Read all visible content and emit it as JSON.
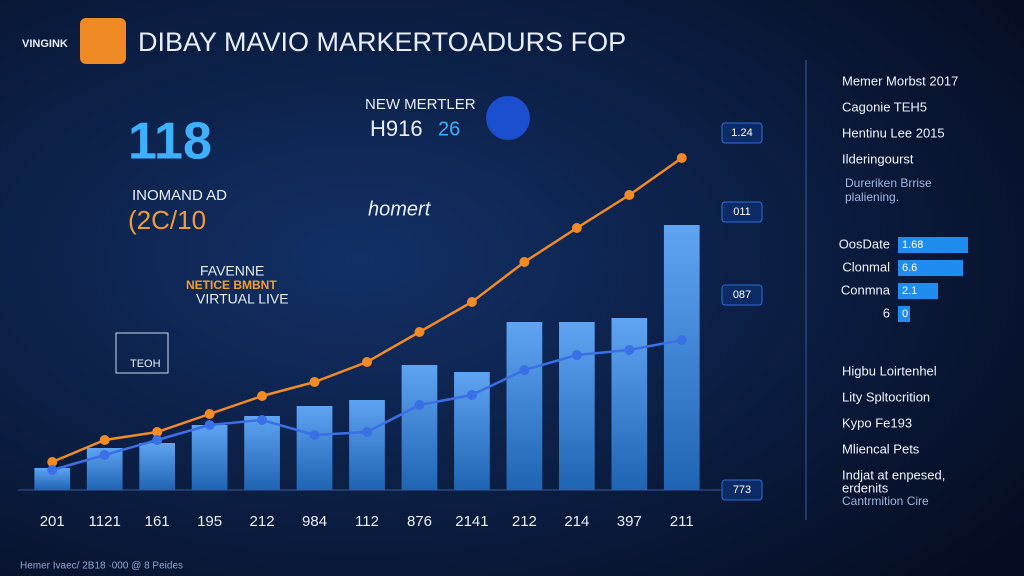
{
  "logo": "VINGINK",
  "headline": {
    "big_number": "118",
    "subtitle": "INOMAND AD",
    "year": "(2C/10"
  },
  "badge": {
    "line1": "NEW MERTLER",
    "value": "H916",
    "value2": "26"
  },
  "brand": "homert",
  "promo": {
    "line1": "FAVENNE",
    "line2": "NETICE BMBNT",
    "line3": "VIRTUAL LIVE"
  },
  "box_label": "TEOH",
  "end_tags": [
    "1.24",
    "011",
    "087",
    "773"
  ],
  "panel": {
    "top": [
      "Memer Morbst 2017",
      "Cagonie TEH5",
      "Hentinu Lee 2015",
      "Ilderingourst"
    ],
    "note": [
      "Dureriken Brrise",
      "plaliening."
    ],
    "bars": [
      {
        "label": "OosDate",
        "text": "1.68"
      },
      {
        "label": "Clonmal",
        "text": "6.6"
      },
      {
        "label": "Conmna",
        "text": "2.1"
      },
      {
        "label": "6",
        "text": "0"
      }
    ],
    "bottom": [
      "Higbu Loirtenhel",
      "Lity Spltocrition",
      "Kypo Fe193",
      "Mliencal Pets",
      "Indjat at enpesed,",
      "erdenits",
      "Cantrmition Cire"
    ]
  },
  "footer": "Hemer Ivaec/ 2B18 ·000 @ 8 Peides",
  "chart_data": {
    "type": "bar",
    "title": "DIBAY MAVIO MARKERTOADURS FOP",
    "categories": [
      "201",
      "1121",
      "161",
      "195",
      "212",
      "984",
      "112",
      "876",
      "2141",
      "212",
      "214",
      "397",
      "211"
    ],
    "ylim": [
      0,
      360
    ],
    "series": [
      {
        "type": "bar",
        "color": "#2a86ee",
        "values": [
          22,
          42,
          47,
          65,
          74,
          84,
          90,
          125,
          118,
          168,
          168,
          172,
          265
        ]
      },
      {
        "type": "line",
        "color": "#f28a26",
        "values": [
          28,
          50,
          58,
          76,
          94,
          108,
          128,
          158,
          188,
          228,
          262,
          295,
          332
        ]
      },
      {
        "type": "line",
        "color": "#3a6fe6",
        "values": [
          20,
          35,
          50,
          65,
          70,
          55,
          58,
          85,
          95,
          120,
          135,
          140,
          150
        ]
      }
    ]
  }
}
